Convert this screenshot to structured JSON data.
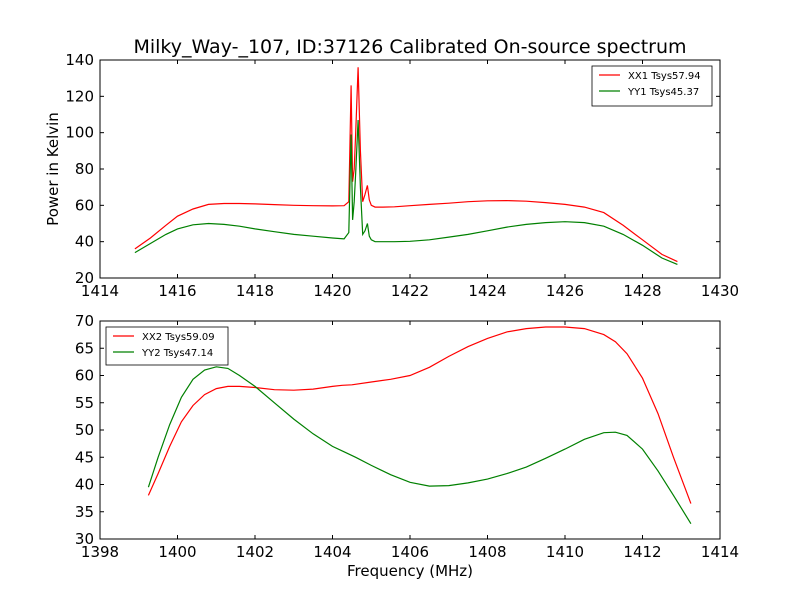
{
  "figure": {
    "title": "Milky_Way-_107, ID:37126 Calibrated On-source spectrum"
  },
  "chart_data": [
    {
      "type": "line",
      "title": "Milky_Way-_107, ID:37126 Calibrated On-source spectrum",
      "xlabel": "",
      "ylabel": "Power in Kelvin",
      "xlim": [
        1414,
        1430
      ],
      "ylim": [
        20,
        140
      ],
      "xticks": [
        "1414",
        "1416",
        "1418",
        "1420",
        "1422",
        "1424",
        "1426",
        "1428",
        "1430"
      ],
      "yticks": [
        "20",
        "40",
        "60",
        "80",
        "100",
        "120",
        "140"
      ],
      "grid": false,
      "legend": "top-right",
      "series": [
        {
          "name": "XX1 Tsys57.94",
          "color": "#ff0000",
          "x": [
            1414.9,
            1415.3,
            1415.7,
            1416.0,
            1416.4,
            1416.8,
            1417.2,
            1417.6,
            1418.0,
            1418.5,
            1419.0,
            1419.5,
            1420.0,
            1420.3,
            1420.42,
            1420.48,
            1420.52,
            1420.56,
            1420.6,
            1420.66,
            1420.72,
            1420.78,
            1420.84,
            1420.9,
            1420.95,
            1421.0,
            1421.1,
            1421.3,
            1421.6,
            1422.0,
            1422.5,
            1423.0,
            1423.5,
            1424.0,
            1424.5,
            1425.0,
            1425.5,
            1426.0,
            1426.5,
            1427.0,
            1427.5,
            1428.0,
            1428.5,
            1428.9
          ],
          "y": [
            36,
            42,
            49,
            54,
            58,
            60.5,
            61,
            61,
            60.8,
            60.4,
            60,
            59.8,
            59.7,
            59.8,
            62,
            126,
            73,
            80,
            100,
            136,
            90,
            62,
            66,
            71,
            63,
            60,
            59,
            59,
            59.2,
            59.8,
            60.5,
            61.2,
            62,
            62.5,
            62.6,
            62.3,
            61.5,
            60.5,
            59,
            56,
            49,
            41,
            33,
            29
          ]
        },
        {
          "name": "YY1 Tsys45.37",
          "color": "#008000",
          "x": [
            1414.9,
            1415.3,
            1415.7,
            1416.0,
            1416.4,
            1416.8,
            1417.2,
            1417.6,
            1418.0,
            1418.5,
            1419.0,
            1419.5,
            1420.0,
            1420.3,
            1420.42,
            1420.48,
            1420.52,
            1420.56,
            1420.6,
            1420.66,
            1420.72,
            1420.78,
            1420.84,
            1420.9,
            1420.95,
            1421.0,
            1421.1,
            1421.3,
            1421.6,
            1422.0,
            1422.5,
            1423.0,
            1423.5,
            1424.0,
            1424.5,
            1425.0,
            1425.5,
            1426.0,
            1426.5,
            1427.0,
            1427.5,
            1428.0,
            1428.5,
            1428.9
          ],
          "y": [
            34,
            39,
            44,
            47,
            49.3,
            50,
            49.5,
            48.5,
            47,
            45.5,
            44,
            43,
            42,
            41.5,
            45,
            99,
            52,
            62,
            78,
            107,
            70,
            44,
            46,
            50,
            43,
            41,
            40,
            40,
            40,
            40.2,
            41,
            42.5,
            44,
            46,
            48,
            49.5,
            50.5,
            51,
            50.5,
            48.5,
            44,
            38,
            31,
            27.5
          ]
        }
      ]
    },
    {
      "type": "line",
      "title": "",
      "xlabel": "Frequency (MHz)",
      "ylabel": "",
      "xlim": [
        1398,
        1414
      ],
      "ylim": [
        30,
        70
      ],
      "xticks": [
        "1398",
        "1400",
        "1402",
        "1404",
        "1406",
        "1408",
        "1410",
        "1412",
        "1414"
      ],
      "yticks": [
        "30",
        "35",
        "40",
        "45",
        "50",
        "55",
        "60",
        "65",
        "70"
      ],
      "grid": false,
      "legend": "top-left",
      "series": [
        {
          "name": "XX2 Tsys59.09",
          "color": "#ff0000",
          "x": [
            1399.25,
            1399.5,
            1399.8,
            1400.1,
            1400.4,
            1400.7,
            1401.0,
            1401.3,
            1401.6,
            1402.0,
            1402.5,
            1403.0,
            1403.5,
            1404.0,
            1404.25,
            1404.5,
            1405.0,
            1405.5,
            1406.0,
            1406.5,
            1407.0,
            1407.5,
            1408.0,
            1408.5,
            1409.0,
            1409.5,
            1410.0,
            1410.5,
            1411.0,
            1411.3,
            1411.6,
            1412.0,
            1412.4,
            1412.8,
            1413.25
          ],
          "y": [
            38,
            42,
            47,
            51.5,
            54.5,
            56.5,
            57.6,
            58,
            58,
            57.8,
            57.4,
            57.3,
            57.5,
            58,
            58.2,
            58.3,
            58.8,
            59.3,
            60,
            61.5,
            63.5,
            65.3,
            66.8,
            68,
            68.6,
            68.9,
            68.9,
            68.6,
            67.5,
            66.2,
            64,
            59.5,
            53,
            45,
            36.5
          ]
        },
        {
          "name": "YY2 Tsys47.14",
          "color": "#008000",
          "x": [
            1399.25,
            1399.5,
            1399.8,
            1400.1,
            1400.4,
            1400.7,
            1401.0,
            1401.3,
            1401.6,
            1402.0,
            1402.5,
            1403.0,
            1403.5,
            1404.0,
            1404.3,
            1404.6,
            1405.0,
            1405.5,
            1406.0,
            1406.5,
            1407.0,
            1407.5,
            1408.0,
            1408.5,
            1409.0,
            1409.5,
            1410.0,
            1410.5,
            1411.0,
            1411.3,
            1411.6,
            1412.0,
            1412.4,
            1412.8,
            1413.25
          ],
          "y": [
            39.5,
            45,
            51,
            56,
            59.3,
            61,
            61.6,
            61.3,
            60,
            58,
            55,
            52,
            49.3,
            47,
            46,
            45,
            43.5,
            41.8,
            40.4,
            39.7,
            39.8,
            40.3,
            41,
            42,
            43.2,
            44.8,
            46.5,
            48.3,
            49.5,
            49.6,
            49,
            46.5,
            42.5,
            38,
            32.8
          ]
        }
      ]
    }
  ]
}
